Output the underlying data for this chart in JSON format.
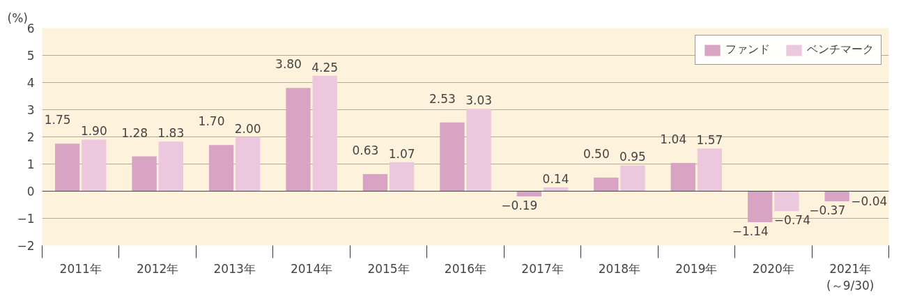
{
  "chart_data": {
    "type": "bar",
    "ylabel": "(%)",
    "categories": [
      "2011年",
      "2012年",
      "2013年",
      "2014年",
      "2015年",
      "2016年",
      "2017年",
      "2018年",
      "2019年",
      "2020年",
      "2021年\n(～9/30)"
    ],
    "series": [
      {
        "name": "ファンド",
        "color": "#d9a3c4",
        "values": [
          1.75,
          1.28,
          1.7,
          3.8,
          0.63,
          2.53,
          -0.19,
          0.5,
          1.04,
          -1.14,
          -0.37
        ],
        "value_labels": [
          "1.75",
          "1.28",
          "1.70",
          "3.80",
          "0.63",
          "2.53",
          "−0.19",
          "0.50",
          "1.04",
          "−1.14",
          "−0.37"
        ]
      },
      {
        "name": "ベンチマーク",
        "color": "#ecc8de",
        "values": [
          1.9,
          1.83,
          2.0,
          4.25,
          1.07,
          3.03,
          0.14,
          0.95,
          1.57,
          -0.74,
          -0.04
        ],
        "value_labels": [
          "1.90",
          "1.83",
          "2.00",
          "4.25",
          "1.07",
          "3.03",
          "0.14",
          "0.95",
          "1.57",
          "−0.74",
          "−0.04"
        ]
      }
    ],
    "ylim": [
      -2,
      6
    ],
    "yticks": [
      {
        "value": -2,
        "label": "−2"
      },
      {
        "value": -1,
        "label": "−1"
      },
      0,
      1,
      2,
      3,
      4,
      5,
      6
    ],
    "grid": "y",
    "legend": "top right"
  }
}
